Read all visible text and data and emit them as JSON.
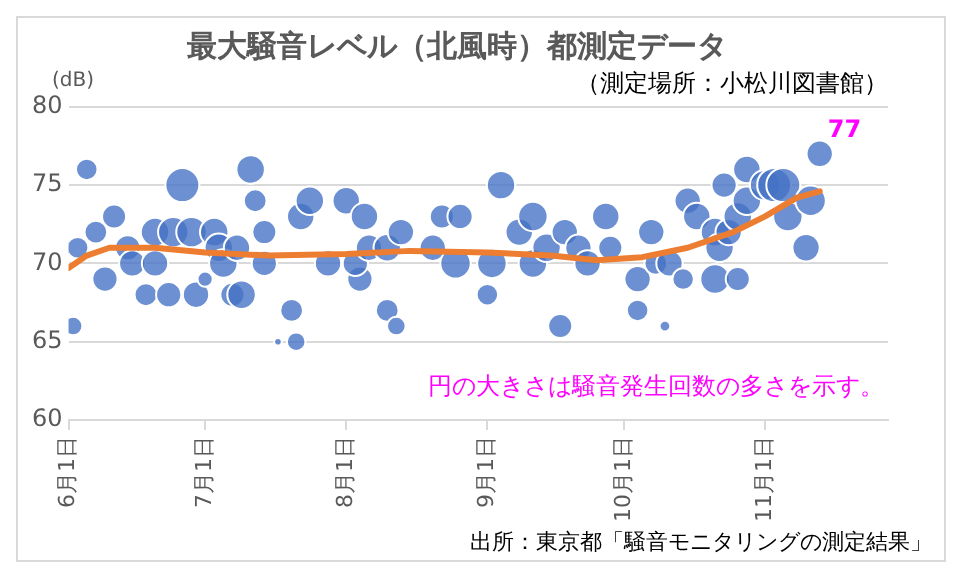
{
  "chart_data": {
    "type": "bubble",
    "title": "最大騒音レベル（北風時）都測定データ",
    "subtitle": "（測定場所：小松川図書館）",
    "ylabel": "(dB)",
    "xlim": [
      "--06-01",
      "--11-28"
    ],
    "xticks": [
      {
        "value": "--06-01",
        "label": "6月1日"
      },
      {
        "value": "--07-01",
        "label": "7月1日"
      },
      {
        "value": "--08-01",
        "label": "8月1日"
      },
      {
        "value": "--09-01",
        "label": "9月1日"
      },
      {
        "value": "--10-01",
        "label": "10月1日"
      },
      {
        "value": "--11-01",
        "label": "11月1日"
      }
    ],
    "ylim": [
      60,
      80
    ],
    "yticks": [
      60,
      65,
      70,
      75,
      80
    ],
    "grid": "y",
    "legend": false,
    "series": [
      {
        "color": "#4472c4",
        "x": [
          "--06-02",
          "--06-03",
          "--06-05",
          "--06-07",
          "--06-09",
          "--06-11",
          "--06-14",
          "--06-15",
          "--06-18",
          "--06-20",
          "--06-20",
          "--06-23",
          "--06-24",
          "--06-26",
          "--06-28",
          "--06-29",
          "--07-01",
          "--07-03",
          "--07-04",
          "--07-05",
          "--07-08",
          "--07-07",
          "--07-09",
          "--07-11",
          "--07-12",
          "--07-14",
          "--07-14",
          "--07-17",
          "--07-20",
          "--07-21",
          "--07-22",
          "--07-24",
          "--07-28",
          "--08-01",
          "--08-04",
          "--08-05",
          "--08-03",
          "--08-06",
          "--08-10",
          "--08-10",
          "--08-12",
          "--08-13",
          "--08-20",
          "--08-22",
          "--08-25",
          "--08-26",
          "--09-01",
          "--09-02",
          "--09-04",
          "--09-08",
          "--09-11",
          "--09-11",
          "--09-14",
          "--09-17",
          "--09-18",
          "--09-21",
          "--09-23",
          "--09-27",
          "--09-28",
          "--10-04",
          "--10-04",
          "--10-07",
          "--10-08",
          "--10-10",
          "--10-11",
          "--10-14",
          "--10-15",
          "--10-17",
          "--10-21",
          "--10-21",
          "--10-22",
          "--10-23",
          "--10-24",
          "--10-26",
          "--10-26",
          "--10-28",
          "--10-28",
          "--11-01",
          "--11-03",
          "--11-05",
          "--11-06",
          "--11-10",
          "--11-11",
          "--11-13"
        ],
        "values": [
          66,
          71,
          76,
          72,
          69,
          73,
          71,
          70,
          68,
          72,
          70,
          68,
          72,
          75,
          72,
          68,
          69,
          72,
          71,
          70,
          71,
          68,
          68,
          76,
          74,
          72,
          70,
          65,
          67,
          65,
          73,
          74,
          70,
          74,
          69,
          73,
          70,
          71,
          67,
          71,
          66,
          72,
          71,
          73,
          70,
          73,
          68,
          70,
          75,
          72,
          73,
          70,
          71,
          66,
          72,
          71,
          70,
          73,
          71,
          67,
          69,
          72,
          70,
          66,
          70,
          69,
          74,
          73,
          72,
          69,
          71,
          75,
          72,
          73,
          69,
          76,
          74,
          75,
          75,
          75,
          73,
          71,
          74,
          77
        ],
        "sizes": [
          0.3,
          0.4,
          0.4,
          0.45,
          0.55,
          0.5,
          0.55,
          0.6,
          0.45,
          0.7,
          0.6,
          0.55,
          0.8,
          1,
          0.8,
          0.6,
          0.2,
          0.7,
          0.7,
          0.7,
          0.6,
          0.5,
          0.7,
          0.7,
          0.45,
          0.5,
          0.55,
          0.05,
          0.45,
          0.3,
          0.65,
          0.7,
          0.6,
          0.65,
          0.55,
          0.65,
          0.55,
          0.6,
          0.45,
          0.65,
          0.3,
          0.6,
          0.6,
          0.5,
          0.8,
          0.55,
          0.4,
          0.75,
          0.7,
          0.65,
          0.75,
          0.7,
          0.7,
          0.5,
          0.6,
          0.6,
          0.6,
          0.65,
          0.5,
          0.4,
          0.6,
          0.6,
          0.45,
          0.1,
          0.6,
          0.4,
          0.6,
          0.65,
          0.7,
          0.75,
          0.7,
          0.55,
          0.6,
          0.7,
          0.5,
          0.65,
          0.7,
          0.8,
          1,
          1,
          0.75,
          0.65,
          0.8,
          0.6
        ],
        "value_labels": [
          null,
          null,
          null,
          null,
          null,
          null,
          null,
          null,
          null,
          null,
          null,
          null,
          null,
          null,
          null,
          null,
          null,
          null,
          null,
          null,
          null,
          null,
          null,
          null,
          null,
          null,
          null,
          null,
          null,
          null,
          null,
          null,
          null,
          null,
          null,
          null,
          null,
          null,
          null,
          null,
          null,
          null,
          null,
          null,
          null,
          null,
          null,
          null,
          null,
          null,
          null,
          null,
          null,
          null,
          null,
          null,
          null,
          null,
          null,
          null,
          null,
          null,
          null,
          null,
          null,
          null,
          null,
          null,
          null,
          null,
          null,
          null,
          null,
          null,
          null,
          null,
          null,
          null,
          null,
          null,
          null,
          null,
          null,
          "77"
        ]
      },
      {
        "type": "line",
        "color": "#ed7d31",
        "x": [
          "--06-01",
          "--06-05",
          "--06-10",
          "--06-20",
          "--07-01",
          "--07-15",
          "--08-01",
          "--08-15",
          "--09-01",
          "--09-15",
          "--09-25",
          "--10-05",
          "--10-15",
          "--10-25",
          "--11-01",
          "--11-08",
          "--11-13"
        ],
        "values": [
          69.7,
          70.5,
          71,
          71,
          70.7,
          70.5,
          70.6,
          70.8,
          70.7,
          70.5,
          70.2,
          70.4,
          71,
          72,
          73,
          74.2,
          74.6
        ]
      }
    ],
    "annotations": [
      "円の大きさは騒音発生回数の多さを示す。",
      "出所：東京都「騒音モニタリングの測定結果」"
    ]
  }
}
